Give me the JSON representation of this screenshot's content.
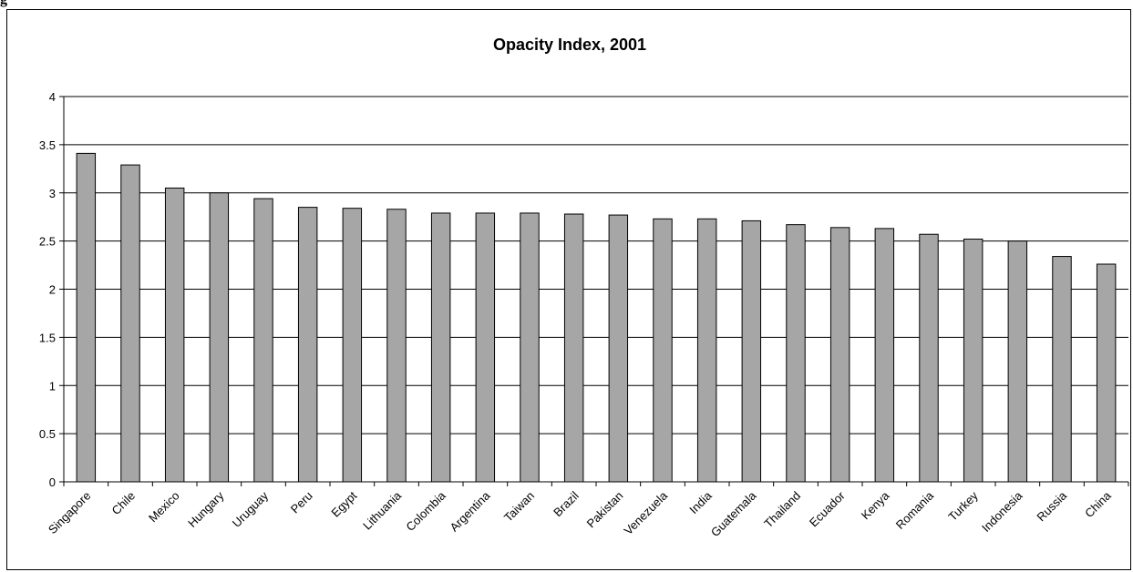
{
  "figure_label": "g",
  "chart_data": {
    "type": "bar",
    "title": "Opacity Index, 2001",
    "xlabel": "",
    "ylabel": "",
    "ylim": [
      0,
      4
    ],
    "yticks": [
      0,
      0.5,
      1,
      1.5,
      2,
      2.5,
      3,
      3.5,
      4
    ],
    "ytick_labels": [
      "0",
      "0.5",
      "1",
      "1.5",
      "2",
      "2.5",
      "3",
      "3.5",
      "4"
    ],
    "grid": true,
    "legend": "none",
    "bar_color": "#a6a6a6",
    "categories": [
      "Singapore",
      "Chile",
      "Mexico",
      "Hungary",
      "Uruguay",
      "Peru",
      "Egypt",
      "Lithuania",
      "Colombia",
      "Argentina",
      "Taiwan",
      "Brazil",
      "Pakistan",
      "Venezuela",
      "India",
      "Guatemala",
      "Thailand",
      "Ecuador",
      "Kenya",
      "Romania",
      "Turkey",
      "Indonesia",
      "Russia",
      "China"
    ],
    "values": [
      3.41,
      3.29,
      3.05,
      3.0,
      2.94,
      2.85,
      2.84,
      2.83,
      2.79,
      2.79,
      2.79,
      2.78,
      2.77,
      2.73,
      2.73,
      2.71,
      2.67,
      2.64,
      2.63,
      2.57,
      2.52,
      2.5,
      2.34,
      2.26
    ]
  }
}
